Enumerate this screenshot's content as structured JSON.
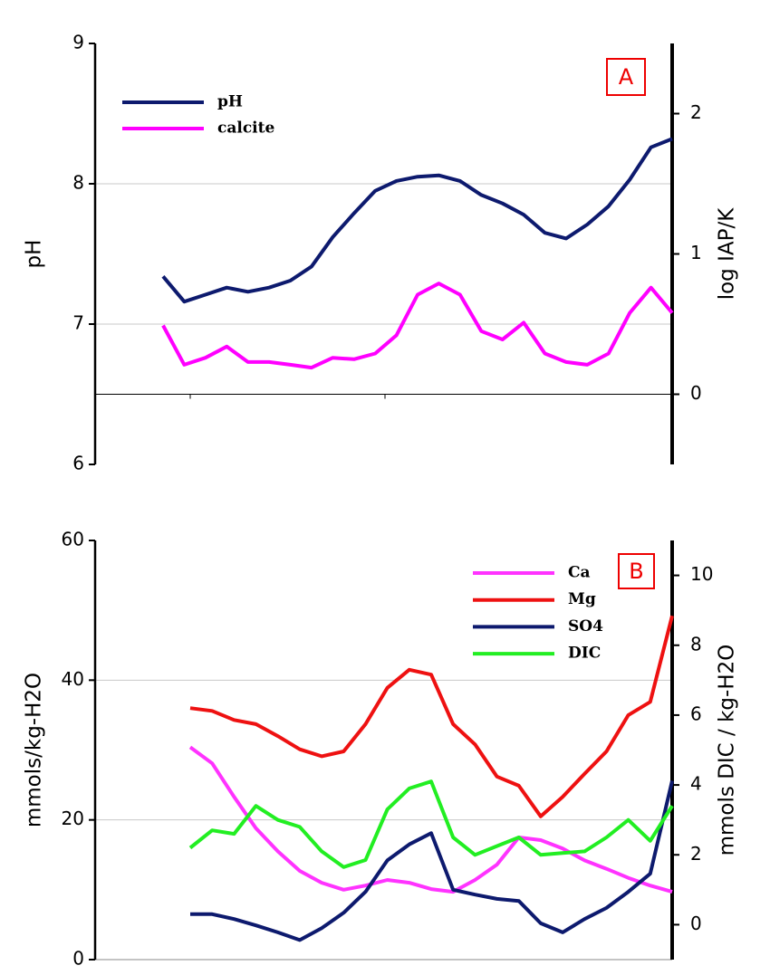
{
  "chart_data": [
    {
      "type": "line",
      "ylabel": "pH",
      "y2label": "log IAP/K",
      "annotation": "A",
      "ylim": [
        6,
        9
      ],
      "yticks": [
        6,
        7,
        8,
        9
      ],
      "y2lim": [
        -0.5,
        2.5
      ],
      "y2ticks": [
        0,
        1,
        2
      ],
      "xaxis_at_y2": 0,
      "grid": true,
      "series": [
        {
          "name": "pH",
          "color": "#0d1a6e",
          "values": [
            7.34,
            7.16,
            7.21,
            7.26,
            7.23,
            7.26,
            7.31,
            7.41,
            7.62,
            7.79,
            7.95,
            8.02,
            8.05,
            8.06,
            8.02,
            7.92,
            7.86,
            7.78,
            7.65,
            7.61,
            7.71,
            7.84,
            8.03,
            8.26,
            8.32
          ]
        },
        {
          "name": "calcite",
          "color": "#ff00ff",
          "axis": "y2",
          "values": [
            0.49,
            0.21,
            0.26,
            0.34,
            0.23,
            0.23,
            0.21,
            0.19,
            0.26,
            0.25,
            0.29,
            0.42,
            0.71,
            0.79,
            0.71,
            0.45,
            0.39,
            0.51,
            0.29,
            0.23,
            0.21,
            0.29,
            0.58,
            0.76,
            0.58
          ]
        }
      ]
    },
    {
      "type": "line",
      "ylabel": "mmols/kg-H2O",
      "y2label": "mmols DIC / kg-H2O",
      "annotation": "B",
      "ylim": [
        0,
        60
      ],
      "yticks": [
        0,
        20,
        40,
        60
      ],
      "y2lim": [
        -1,
        11
      ],
      "y2ticks": [
        0,
        2,
        4,
        6,
        8,
        10
      ],
      "grid": true,
      "series": [
        {
          "name": "Ca",
          "color": "#ff33ff",
          "values": [
            30.4,
            28.1,
            23.3,
            18.8,
            15.5,
            12.7,
            11.0,
            10.0,
            10.6,
            11.4,
            11.0,
            10.1,
            9.7,
            11.4,
            13.6,
            17.5,
            17.1,
            15.9,
            14.2,
            13.0,
            11.7,
            10.6,
            9.7
          ]
        },
        {
          "name": "Mg",
          "color": "#ee1111",
          "values": [
            36.0,
            35.6,
            34.3,
            33.7,
            32.0,
            30.1,
            29.1,
            29.8,
            33.7,
            38.9,
            41.5,
            40.8,
            33.7,
            30.8,
            26.2,
            24.9,
            20.5,
            23.3,
            26.6,
            29.8,
            35.0,
            36.9,
            49.2
          ]
        },
        {
          "name": "SO4",
          "color": "#0d1a6e",
          "values": [
            6.5,
            6.5,
            5.8,
            4.9,
            3.9,
            2.8,
            4.5,
            6.7,
            9.7,
            14.2,
            16.5,
            18.1,
            10.0,
            9.3,
            8.7,
            8.4,
            5.2,
            3.9,
            5.8,
            7.4,
            9.7,
            12.3,
            25.6
          ]
        },
        {
          "name": "DIC",
          "color": "#22ee22",
          "axis": "y2",
          "values": [
            2.2,
            2.7,
            2.6,
            3.4,
            3.0,
            2.8,
            2.1,
            1.65,
            1.85,
            3.3,
            3.9,
            4.1,
            2.5,
            2.0,
            2.25,
            2.5,
            2.0,
            2.05,
            2.1,
            2.5,
            3.0,
            2.4,
            3.4
          ]
        }
      ]
    }
  ]
}
